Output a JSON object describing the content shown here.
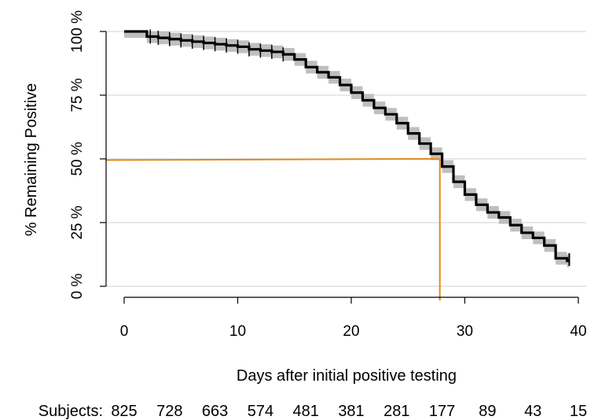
{
  "chart_data": {
    "type": "line",
    "title": "",
    "xlabel": "Days after initial positive testing",
    "ylabel": "% Remaining Positive",
    "xlim": [
      0,
      40
    ],
    "ylim": [
      0,
      100
    ],
    "x_ticks": [
      0,
      10,
      20,
      30,
      40
    ],
    "x_tick_labels": [
      "0",
      "10",
      "20",
      "30",
      "40"
    ],
    "y_ticks": [
      0,
      25,
      50,
      75,
      100
    ],
    "y_tick_labels": [
      "0 %",
      "25 %",
      "50 %",
      "75 %",
      "100 %"
    ],
    "grid": "horizontal",
    "series": [
      {
        "color": "#000000",
        "ci_color": "#bfbfbf",
        "x": [
          0,
          2,
          3,
          4,
          5,
          6,
          7,
          8,
          9,
          10,
          11,
          12,
          13,
          14,
          15,
          16,
          17,
          18,
          19,
          20,
          21,
          22,
          23,
          24,
          25,
          26,
          27,
          28,
          29,
          30,
          31,
          32,
          33,
          34,
          35,
          36,
          37,
          38,
          39
        ],
        "values": [
          100,
          98,
          97.5,
          97,
          96.5,
          96,
          95.5,
          95,
          94.5,
          94,
          93,
          92.5,
          92,
          91,
          89,
          86,
          84,
          82,
          79,
          76,
          73,
          70,
          67.5,
          64,
          60,
          56,
          52,
          47,
          41,
          36,
          32,
          29,
          27,
          24,
          21,
          19,
          16,
          11,
          10
        ],
        "ci_halfwidth": 2.5
      }
    ],
    "median_marker": {
      "color": "#e08a1e",
      "x": 27.8,
      "y": 50
    },
    "censor_ticks": [
      2.3,
      3,
      4,
      5,
      6,
      7,
      8,
      9,
      10,
      11,
      12,
      13,
      14
    ]
  },
  "risk_table": {
    "label": "Subjects:",
    "x": [
      0,
      4,
      8,
      12,
      16,
      20,
      24,
      28,
      32,
      36,
      40
    ],
    "counts": [
      "825",
      "728",
      "663",
      "574",
      "481",
      "381",
      "281",
      "177",
      "89",
      "43",
      "15"
    ]
  }
}
